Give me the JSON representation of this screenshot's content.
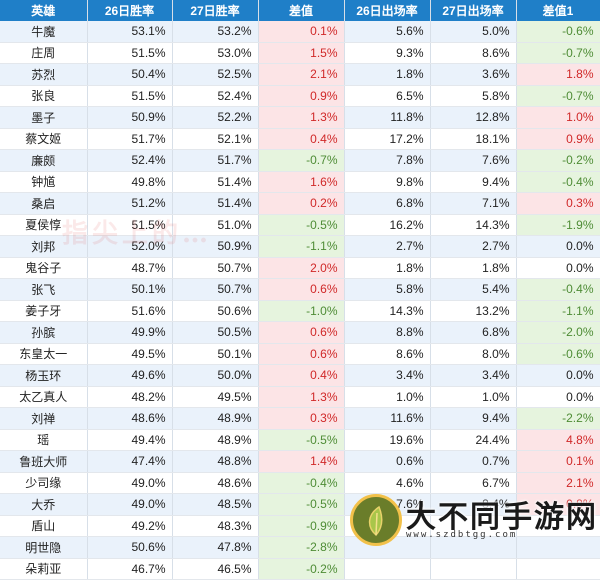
{
  "headers": [
    "英雄",
    "26日胜率",
    "27日胜率",
    "差值",
    "26日出场率",
    "27日出场率",
    "差值1"
  ],
  "rows": [
    [
      "牛魔",
      "53.1%",
      "53.2%",
      "0.1%",
      "5.6%",
      "5.0%",
      "-0.6%"
    ],
    [
      "庄周",
      "51.5%",
      "53.0%",
      "1.5%",
      "9.3%",
      "8.6%",
      "-0.7%"
    ],
    [
      "苏烈",
      "50.4%",
      "52.5%",
      "2.1%",
      "1.8%",
      "3.6%",
      "1.8%"
    ],
    [
      "张良",
      "51.5%",
      "52.4%",
      "0.9%",
      "6.5%",
      "5.8%",
      "-0.7%"
    ],
    [
      "墨子",
      "50.9%",
      "52.2%",
      "1.3%",
      "11.8%",
      "12.8%",
      "1.0%"
    ],
    [
      "蔡文姬",
      "51.7%",
      "52.1%",
      "0.4%",
      "17.2%",
      "18.1%",
      "0.9%"
    ],
    [
      "廉颇",
      "52.4%",
      "51.7%",
      "-0.7%",
      "7.8%",
      "7.6%",
      "-0.2%"
    ],
    [
      "钟馗",
      "49.8%",
      "51.4%",
      "1.6%",
      "9.8%",
      "9.4%",
      "-0.4%"
    ],
    [
      "桑启",
      "51.2%",
      "51.4%",
      "0.2%",
      "6.8%",
      "7.1%",
      "0.3%"
    ],
    [
      "夏侯惇",
      "51.5%",
      "51.0%",
      "-0.5%",
      "16.2%",
      "14.3%",
      "-1.9%"
    ],
    [
      "刘邦",
      "52.0%",
      "50.9%",
      "-1.1%",
      "2.7%",
      "2.7%",
      "0.0%"
    ],
    [
      "鬼谷子",
      "48.7%",
      "50.7%",
      "2.0%",
      "1.8%",
      "1.8%",
      "0.0%"
    ],
    [
      "张飞",
      "50.1%",
      "50.7%",
      "0.6%",
      "5.8%",
      "5.4%",
      "-0.4%"
    ],
    [
      "姜子牙",
      "51.6%",
      "50.6%",
      "-1.0%",
      "14.3%",
      "13.2%",
      "-1.1%"
    ],
    [
      "孙膑",
      "49.9%",
      "50.5%",
      "0.6%",
      "8.8%",
      "6.8%",
      "-2.0%"
    ],
    [
      "东皇太一",
      "49.5%",
      "50.1%",
      "0.6%",
      "8.6%",
      "8.0%",
      "-0.6%"
    ],
    [
      "杨玉环",
      "49.6%",
      "50.0%",
      "0.4%",
      "3.4%",
      "3.4%",
      "0.0%"
    ],
    [
      "太乙真人",
      "48.2%",
      "49.5%",
      "1.3%",
      "1.0%",
      "1.0%",
      "0.0%"
    ],
    [
      "刘禅",
      "48.6%",
      "48.9%",
      "0.3%",
      "11.6%",
      "9.4%",
      "-2.2%"
    ],
    [
      "瑶",
      "49.4%",
      "48.9%",
      "-0.5%",
      "19.6%",
      "24.4%",
      "4.8%"
    ],
    [
      "鲁班大师",
      "47.4%",
      "48.8%",
      "1.4%",
      "0.6%",
      "0.7%",
      "0.1%"
    ],
    [
      "少司缘",
      "49.0%",
      "48.6%",
      "-0.4%",
      "4.6%",
      "6.7%",
      "2.1%"
    ],
    [
      "大乔",
      "49.0%",
      "48.5%",
      "-0.5%",
      "7.6%",
      "8.4%",
      "0.8%"
    ],
    [
      "盾山",
      "49.2%",
      "48.3%",
      "-0.9%",
      "",
      "",
      ""
    ],
    [
      "明世隐",
      "50.6%",
      "47.8%",
      "-2.8%",
      "",
      "",
      ""
    ],
    [
      "朵莉亚",
      "46.7%",
      "46.5%",
      "-0.2%",
      "",
      "",
      ""
    ]
  ],
  "watermark": {
    "text": "指尖上的…",
    "logo_text": "大不同手游网",
    "logo_url": "www.szdbtgg.com"
  },
  "colors": {
    "header_bg": "#1f7fc8",
    "positive_bg": "#fce4e6",
    "positive_text": "#d02828",
    "negative_bg": "#e6f4de",
    "negative_text": "#4e8c35",
    "alt_row_bg": "#eaf2fb"
  }
}
